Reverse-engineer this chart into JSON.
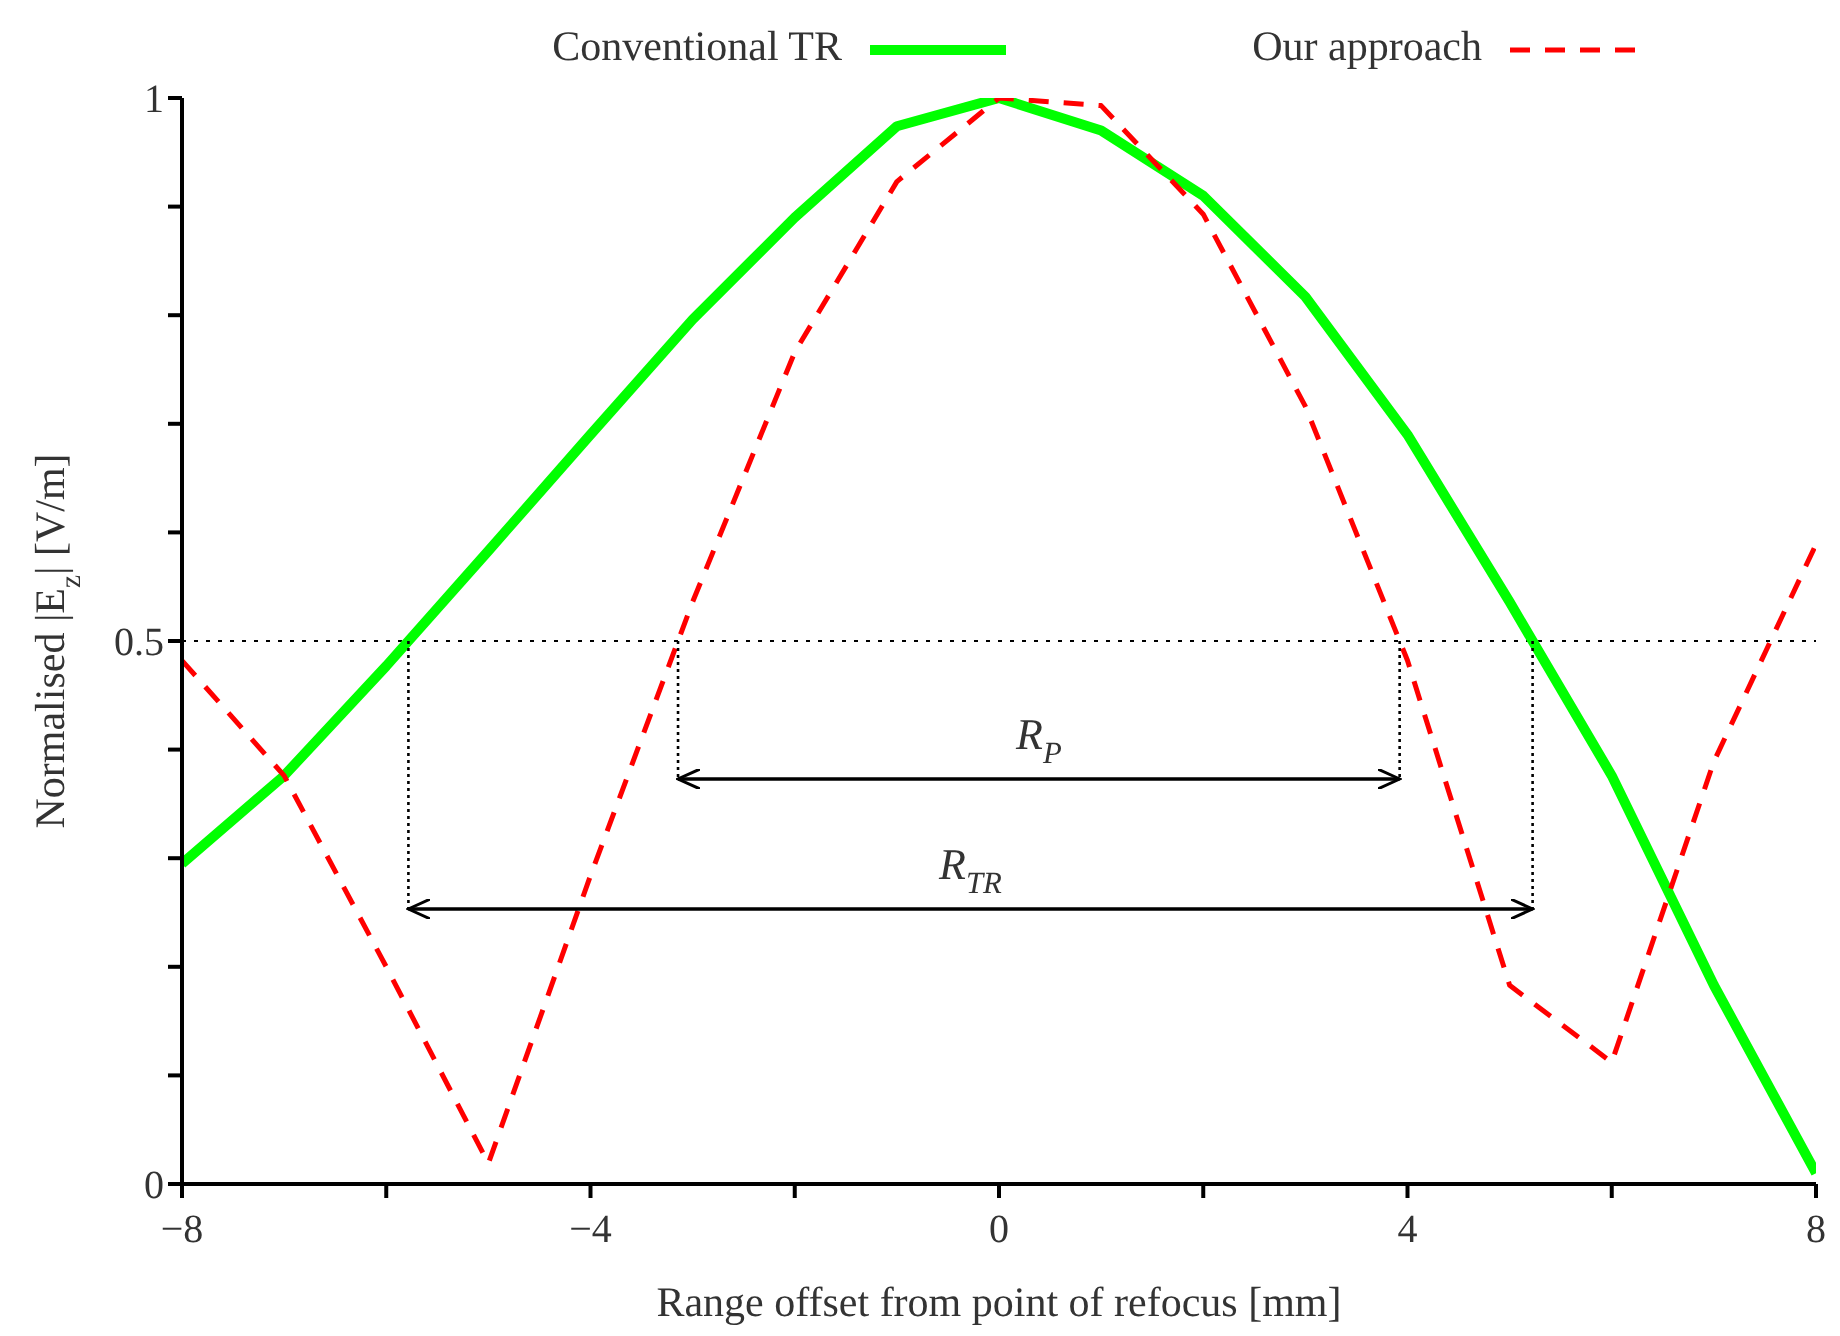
{
  "chart_data": {
    "type": "line",
    "xlabel": "Range offset from point of refocus [mm]",
    "ylabel": "Normalised |E$_{z}$| [V/m]",
    "x": [
      -8,
      -7,
      -6,
      -5,
      -4,
      -3,
      -2,
      -1,
      0,
      1,
      2,
      3,
      4,
      5,
      6,
      7,
      8
    ],
    "series": [
      {
        "name": "Conventional TR",
        "color": "#00ff00",
        "line_style": "solid",
        "values": [
          0.295,
          0.376,
          0.477,
          0.583,
          0.69,
          0.796,
          0.89,
          0.974,
          1.0,
          0.97,
          0.91,
          0.817,
          0.69,
          0.536,
          0.376,
          0.183,
          0.01
        ]
      },
      {
        "name": "Our approach",
        "color": "#ff0000",
        "line_style": "dashed",
        "values": [
          0.482,
          0.376,
          0.2,
          0.019,
          0.284,
          0.536,
          0.766,
          0.923,
          1.0,
          0.993,
          0.893,
          0.716,
          0.482,
          0.183,
          0.112,
          0.389,
          0.589
        ]
      }
    ],
    "xlim": [
      -8,
      8
    ],
    "xticks": [
      {
        "value": -8,
        "label": "−8"
      },
      {
        "value": -6,
        "label": null
      },
      {
        "value": -4,
        "label": "−4"
      },
      {
        "value": -2,
        "label": null
      },
      0,
      {
        "value": 2,
        "label": null
      },
      4,
      {
        "value": 6,
        "label": null
      },
      8
    ],
    "ylim": [
      0,
      1
    ],
    "yticks": [
      0,
      {
        "value": 0.1,
        "label": null
      },
      {
        "value": 0.2,
        "label": null
      },
      {
        "value": 0.3,
        "label": null
      },
      {
        "value": 0.4,
        "label": null
      },
      0.5,
      {
        "value": 0.6,
        "label": null
      },
      {
        "value": 0.7,
        "label": null
      },
      {
        "value": 0.8,
        "label": null
      },
      {
        "value": 0.9,
        "label": null
      },
      1
    ],
    "ref_lines": [
      {
        "axis": "y",
        "value": 0.5,
        "line_style": "dotted"
      }
    ],
    "annotations": [
      "R$_{TR}$",
      "R$_{P}$"
    ],
    "legend": "top",
    "marker": "none",
    "grid": false
  }
}
